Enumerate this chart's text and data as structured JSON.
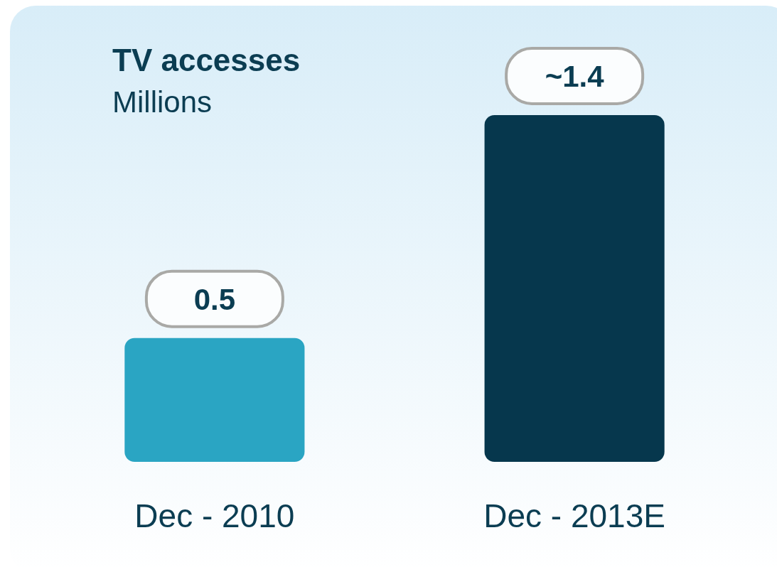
{
  "chart_data": {
    "type": "bar",
    "title": "TV accesses",
    "subtitle": "Millions",
    "categories": [
      "Dec - 2010",
      "Dec - 2013E"
    ],
    "values": [
      0.5,
      1.4
    ],
    "colors": [
      "#2aa5c3",
      "#06374d"
    ],
    "value_labels": [
      "0.5",
      "~1.4"
    ]
  }
}
